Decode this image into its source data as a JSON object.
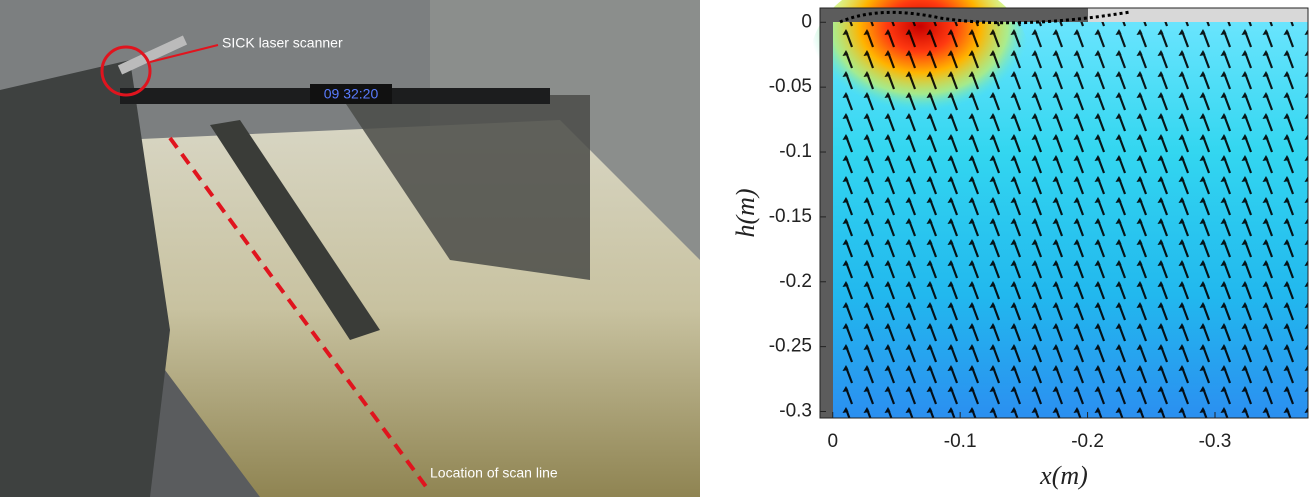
{
  "photo": {
    "clock": "09 32:20",
    "annotations": [
      "SICK laser scanner",
      "Location of scan line"
    ]
  },
  "chart_data": {
    "type": "contour",
    "xlabel": "x(m)",
    "ylabel": "h(m)",
    "xlim": [
      0.01,
      -0.373
    ],
    "ylim": [
      -0.305,
      0.011
    ],
    "xticks": [
      0,
      -0.1,
      -0.2,
      -0.3
    ],
    "yticks": [
      0,
      -0.05,
      -0.1,
      -0.15,
      -0.2,
      -0.25,
      -0.3
    ]
  }
}
